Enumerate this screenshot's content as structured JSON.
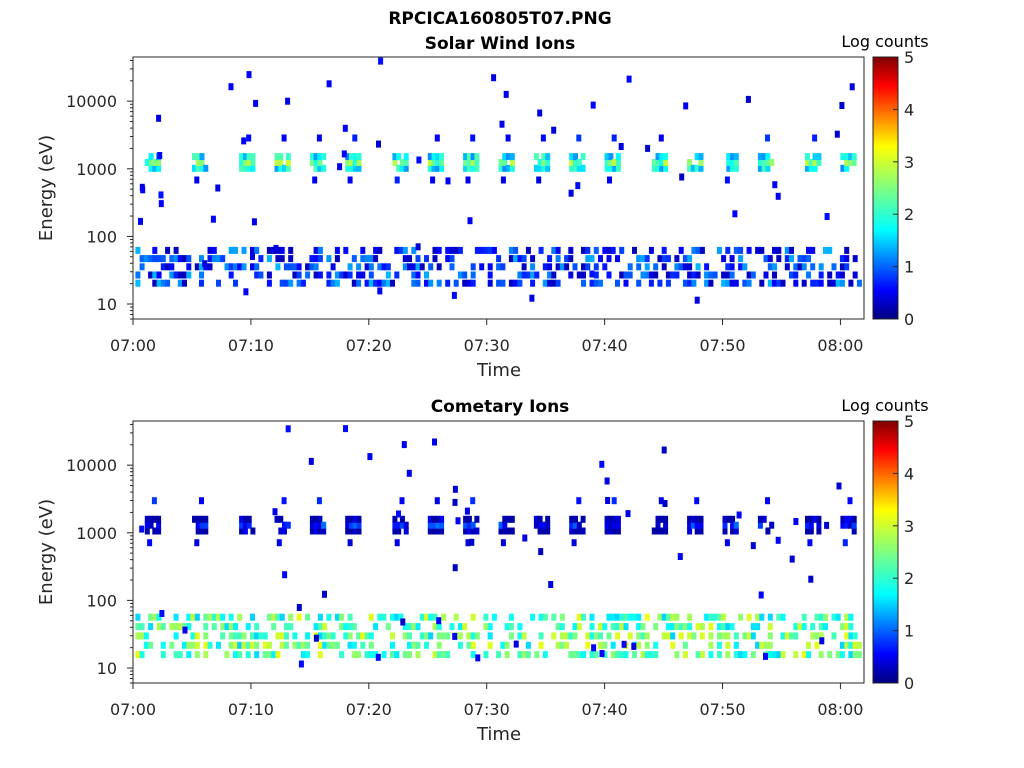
{
  "figure": {
    "title": "RPCICA160805T07.PNG"
  },
  "chart_data": [
    {
      "type": "heatmap",
      "title": "Solar Wind Ions",
      "xlabel": "Time",
      "ylabel": "Energy (eV)",
      "y_scale": "log",
      "ylim": [
        6,
        45000
      ],
      "y_ticks": [
        {
          "value": 10,
          "label": "10"
        },
        {
          "value": 100,
          "label": "100"
        },
        {
          "value": 1000,
          "label": "1000"
        },
        {
          "value": 10000,
          "label": "10000"
        }
      ],
      "x_ticks": [
        "07:00",
        "07:10",
        "07:20",
        "07:30",
        "07:40",
        "07:50",
        "08:00"
      ],
      "xlim": [
        "07:00",
        "08:02"
      ],
      "colorbar": {
        "title": "Log counts",
        "range": [
          0,
          5
        ],
        "ticks": [
          "0",
          "1",
          "2",
          "3",
          "4",
          "5"
        ],
        "colormap": "jet"
      },
      "band_energy": 1100,
      "band_value": 2.4,
      "band_times": [
        "07:01",
        "07:05",
        "07:09",
        "07:12",
        "07:15",
        "07:18",
        "07:22",
        "07:25",
        "07:28",
        "07:31",
        "07:34",
        "07:37",
        "07:40",
        "07:44",
        "07:47",
        "07:50",
        "07:53",
        "07:57",
        "08:00"
      ],
      "low_energy_value": 0.7,
      "low_energy_range": [
        18,
        55
      ],
      "notes": "Recurring ~1 keV solar wind beam (log counts ~2-3) every ~3 min; sparse low-energy (15-55 eV) background at log counts ~0.5-1.5"
    },
    {
      "type": "heatmap",
      "title": "Cometary Ions",
      "xlabel": "Time",
      "ylabel": "Energy (eV)",
      "y_scale": "log",
      "ylim": [
        6,
        45000
      ],
      "y_ticks": [
        {
          "value": 10,
          "label": "10"
        },
        {
          "value": 100,
          "label": "100"
        },
        {
          "value": 1000,
          "label": "1000"
        },
        {
          "value": 10000,
          "label": "10000"
        }
      ],
      "x_ticks": [
        "07:00",
        "07:10",
        "07:20",
        "07:30",
        "07:40",
        "07:50",
        "08:00"
      ],
      "xlim": [
        "07:00",
        "08:02"
      ],
      "colorbar": {
        "title": "Log counts",
        "range": [
          0,
          5
        ],
        "ticks": [
          "0",
          "1",
          "2",
          "3",
          "4",
          "5"
        ],
        "colormap": "jet"
      },
      "band_energy": 1150,
      "band_value": 0.7,
      "band_times": [
        "07:01",
        "07:05",
        "07:09",
        "07:12",
        "07:15",
        "07:18",
        "07:22",
        "07:25",
        "07:28",
        "07:31",
        "07:34",
        "07:37",
        "07:40",
        "07:44",
        "07:47",
        "07:50",
        "07:53",
        "07:57",
        "08:00"
      ],
      "low_energy_value": 2.2,
      "low_energy_range": [
        14,
        50
      ],
      "notes": "Cometary ions concentrated at 10-50 eV (log counts ~2-3) in recurring bursts; weak ~1 keV band at log counts ~0.5-1"
    }
  ]
}
